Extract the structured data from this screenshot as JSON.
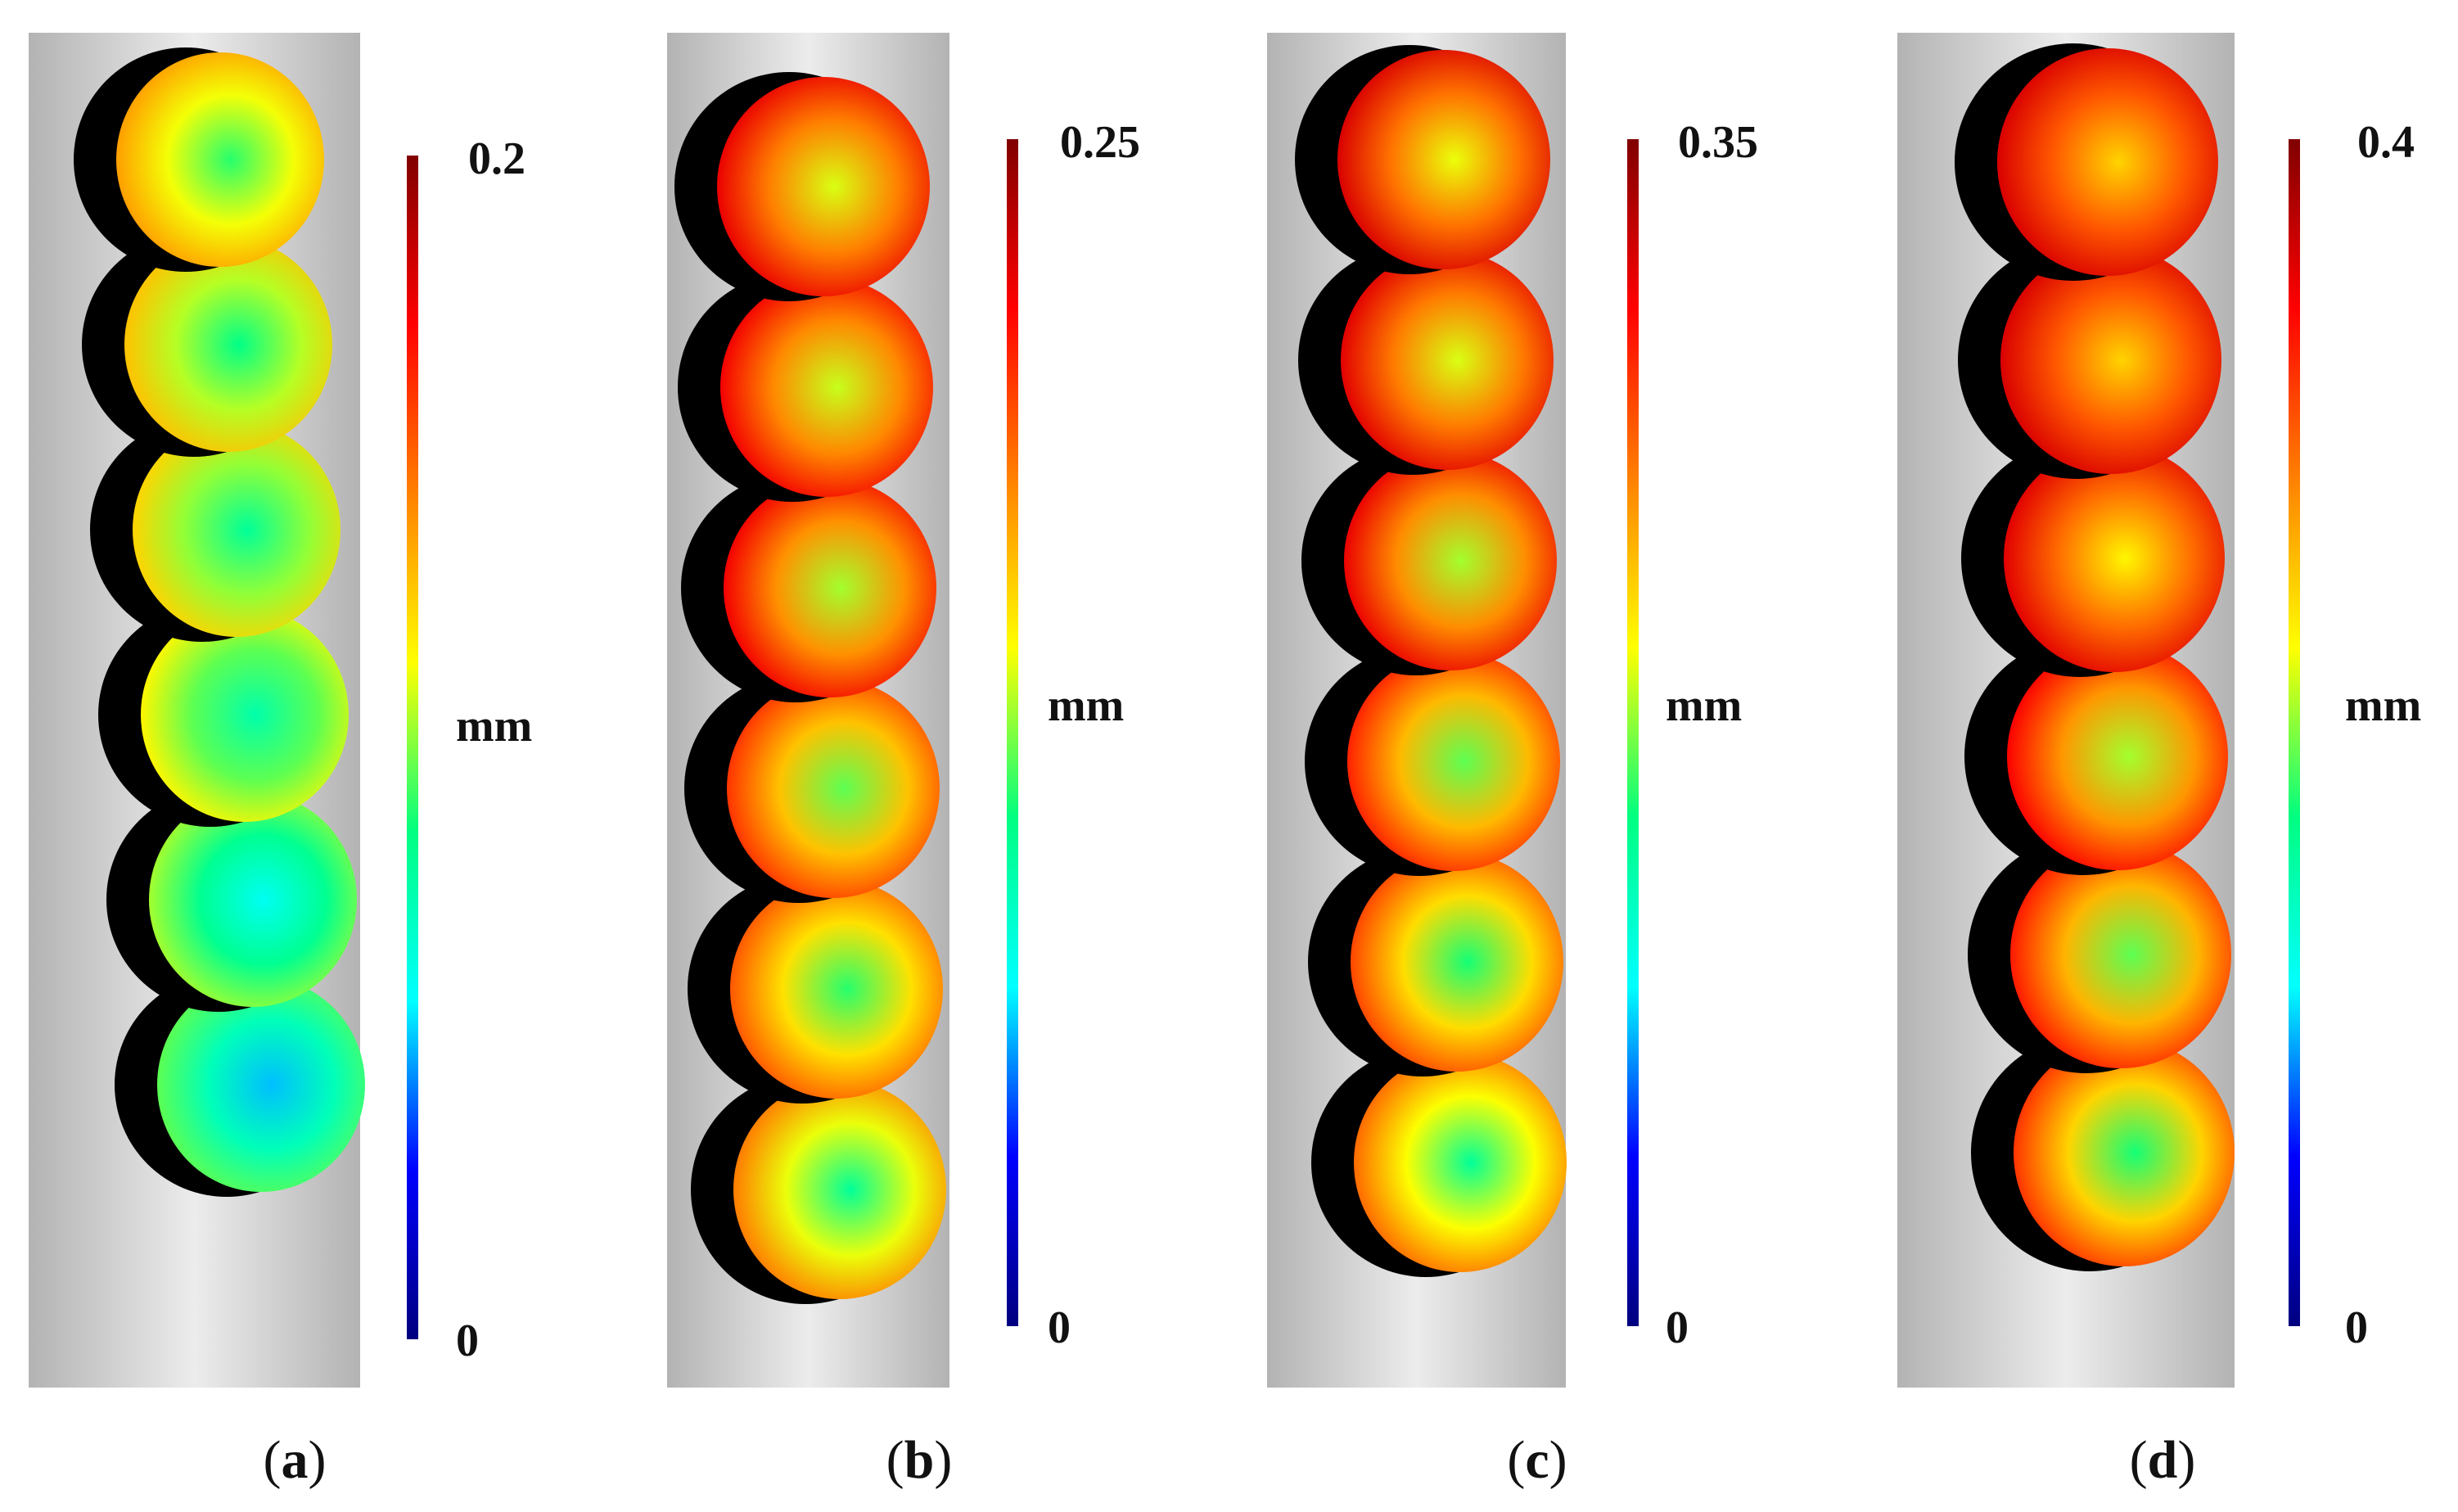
{
  "colormap": {
    "stops": [
      "#00007f",
      "#0000ff",
      "#00ffff",
      "#00ff80",
      "#ffff00",
      "#ff8000",
      "#ff0000",
      "#800000"
    ],
    "background_gradient": [
      "#b3b3b3",
      "#ececec",
      "#b3b3b3"
    ],
    "shadow": "#000000"
  },
  "panels": [
    {
      "caption_open": "(",
      "caption_letter": "a",
      "caption_close": ")",
      "scale_max": "0.2",
      "scale_min": "0",
      "unit": "mm",
      "sphere_levels": [
        {
          "rim": 0.68,
          "center": 0.45
        },
        {
          "rim": 0.64,
          "center": 0.42
        },
        {
          "rim": 0.62,
          "center": 0.4
        },
        {
          "rim": 0.58,
          "center": 0.38
        },
        {
          "rim": 0.52,
          "center": 0.3
        },
        {
          "rim": 0.48,
          "center": 0.25
        }
      ]
    },
    {
      "caption_open": "(",
      "caption_letter": "b",
      "caption_close": ")",
      "scale_max": "0.25",
      "scale_min": "0",
      "unit": "mm",
      "sphere_levels": [
        {
          "rim": 0.88,
          "center": 0.55
        },
        {
          "rim": 0.87,
          "center": 0.54
        },
        {
          "rim": 0.87,
          "center": 0.52
        },
        {
          "rim": 0.8,
          "center": 0.48
        },
        {
          "rim": 0.76,
          "center": 0.45
        },
        {
          "rim": 0.72,
          "center": 0.4
        }
      ]
    },
    {
      "caption_open": "(",
      "caption_letter": "c",
      "caption_close": ")",
      "scale_max": "0.35",
      "scale_min": "0",
      "unit": "mm",
      "sphere_levels": [
        {
          "rim": 0.9,
          "center": 0.56
        },
        {
          "rim": 0.89,
          "center": 0.55
        },
        {
          "rim": 0.88,
          "center": 0.52
        },
        {
          "rim": 0.82,
          "center": 0.48
        },
        {
          "rim": 0.78,
          "center": 0.44
        },
        {
          "rim": 0.74,
          "center": 0.4
        }
      ]
    },
    {
      "caption_open": "(",
      "caption_letter": "d",
      "caption_close": ")",
      "scale_max": "0.4",
      "scale_min": "0",
      "unit": "mm",
      "sphere_levels": [
        {
          "rim": 0.9,
          "center": 0.62
        },
        {
          "rim": 0.9,
          "center": 0.62
        },
        {
          "rim": 0.89,
          "center": 0.58
        },
        {
          "rim": 0.86,
          "center": 0.52
        },
        {
          "rim": 0.83,
          "center": 0.48
        },
        {
          "rim": 0.8,
          "center": 0.44
        }
      ]
    }
  ]
}
